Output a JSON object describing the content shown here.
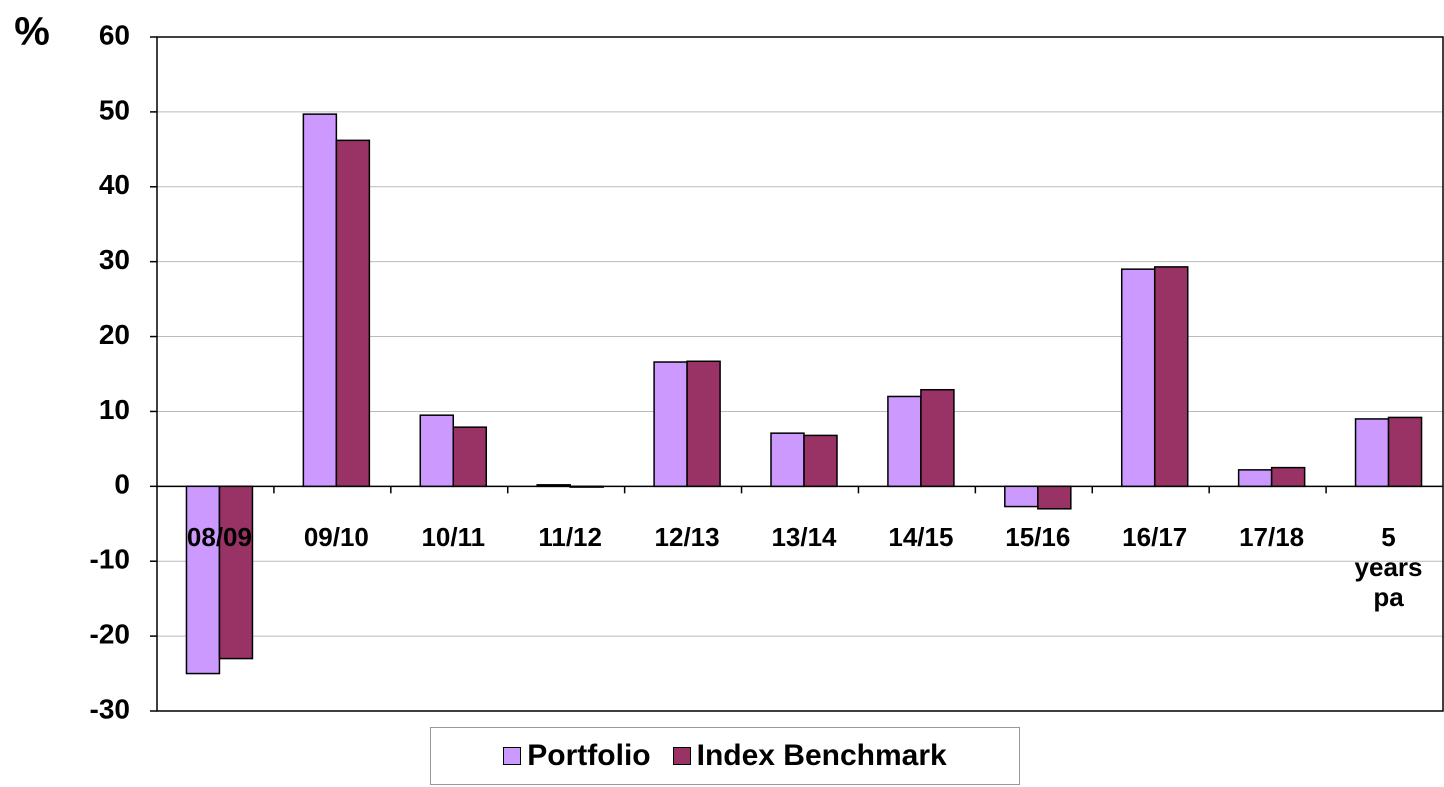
{
  "chart_data": {
    "type": "bar",
    "y_label": "%",
    "categories": [
      "08/09",
      "09/10",
      "10/11",
      "11/12",
      "12/13",
      "13/14",
      "14/15",
      "15/16",
      "16/17",
      "17/18",
      "5 years pa"
    ],
    "series": [
      {
        "name": "Portfolio",
        "color": "#cc99ff",
        "values": [
          -25,
          49.7,
          9.5,
          0.2,
          16.6,
          7.1,
          12.0,
          -2.7,
          29.0,
          2.2,
          9.0
        ]
      },
      {
        "name": "Index Benchmark",
        "color": "#993366",
        "values": [
          -23,
          46.2,
          7.9,
          -0.1,
          16.7,
          6.8,
          12.9,
          -3.0,
          29.3,
          2.5,
          9.2
        ]
      }
    ],
    "ylim": [
      -30,
      60
    ],
    "yticks": [
      -30,
      -20,
      -10,
      0,
      10,
      20,
      30,
      40,
      50,
      60
    ],
    "grid": true,
    "legend": "bottom"
  }
}
